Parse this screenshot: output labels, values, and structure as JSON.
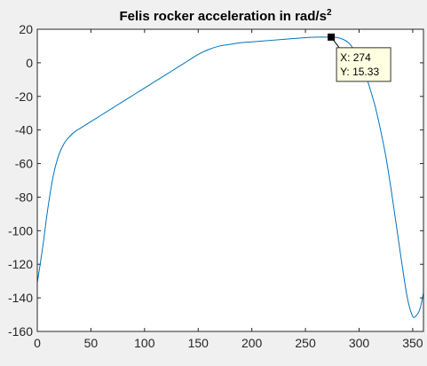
{
  "chart_data": {
    "type": "line",
    "title": "Felis rocker acceleration in rad/s",
    "title_superscript": "2",
    "xlabel": "",
    "ylabel": "",
    "xlim": [
      0,
      360
    ],
    "ylim": [
      -160,
      20
    ],
    "x_ticks": [
      0,
      50,
      100,
      150,
      200,
      250,
      300,
      350
    ],
    "y_ticks": [
      20,
      0,
      -20,
      -40,
      -60,
      -80,
      -100,
      -120,
      -140,
      -160
    ],
    "grid": false,
    "legend": "none",
    "line_color": "#0072bd",
    "series": [
      {
        "x": [
          0,
          5,
          10,
          15,
          20,
          25,
          30,
          35,
          40,
          50,
          60,
          70,
          80,
          90,
          100,
          110,
          120,
          130,
          140,
          150,
          160,
          170,
          180,
          190,
          200,
          210,
          220,
          230,
          240,
          250,
          260,
          270,
          274,
          280,
          285,
          290,
          295,
          300,
          305,
          310,
          315,
          320,
          325,
          330,
          335,
          340,
          345,
          350,
          354,
          357,
          360
        ],
        "y": [
          -131,
          -110,
          -86,
          -67,
          -55,
          -48,
          -44,
          -41,
          -39,
          -35,
          -31,
          -27,
          -23,
          -19,
          -15,
          -11,
          -7,
          -3,
          1,
          5,
          8,
          10,
          11,
          12,
          12.5,
          13,
          13.5,
          14,
          14.5,
          15,
          15.3,
          15.33,
          15.33,
          15,
          14,
          12,
          8,
          2,
          -5,
          -15,
          -26,
          -40,
          -56,
          -76,
          -98,
          -120,
          -140,
          -151,
          -150,
          -146,
          -137
        ]
      }
    ],
    "datatip": {
      "marker_x": 274,
      "marker_y": 15.33,
      "x_text": "X: 274",
      "y_text": "Y: 15.33"
    }
  }
}
